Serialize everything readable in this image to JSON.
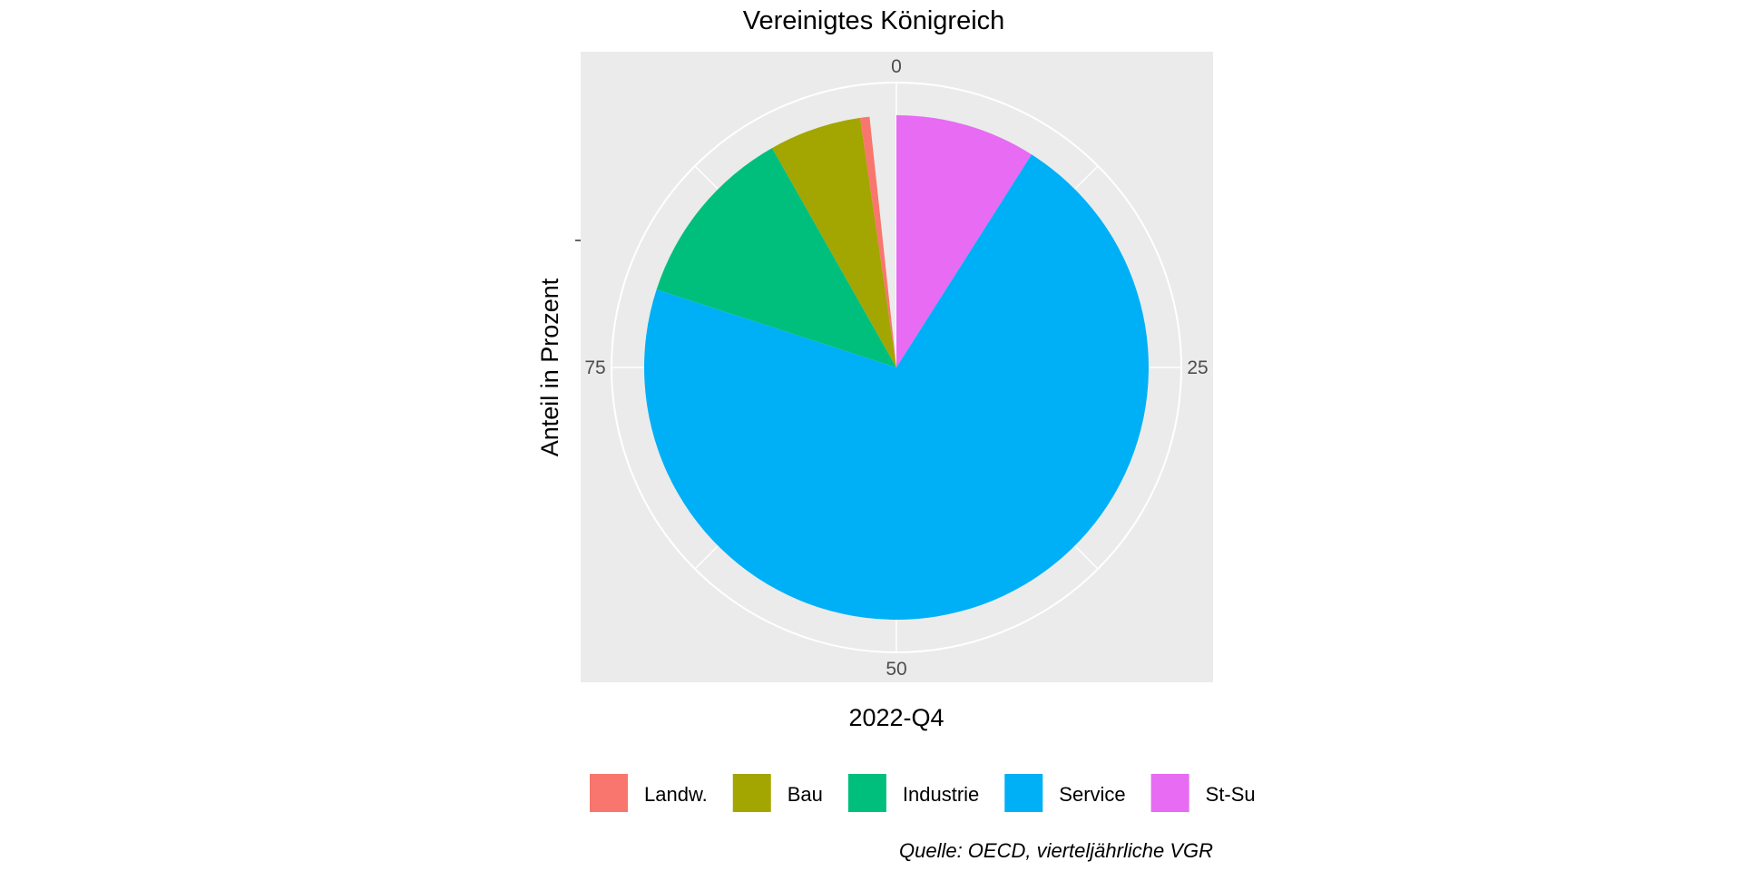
{
  "chart_data": {
    "type": "pie",
    "title": "Vereinigtes Königreich",
    "xlabel": "2022-Q4",
    "ylabel": "Anteil in Prozent",
    "caption": "Quelle: OECD, vierteljährliche VGR",
    "theta_ticks": [
      "0",
      "25",
      "50",
      "75"
    ],
    "theta_range": [
      0,
      100
    ],
    "grid": true,
    "legend_position": "bottom",
    "slices": [
      {
        "label": "St-Su",
        "value": 9.0,
        "color": "#E76BF3"
      },
      {
        "label": "Service",
        "value": 71.0,
        "color": "#00B0F6"
      },
      {
        "label": "Industrie",
        "value": 11.8,
        "color": "#00BF7D"
      },
      {
        "label": "Bau",
        "value": 5.9,
        "color": "#A3A500"
      },
      {
        "label": "Landw.",
        "value": 0.6,
        "color": "#F8766D"
      }
    ],
    "legend": [
      {
        "label": "Landw.",
        "color": "#F8766D"
      },
      {
        "label": "Bau",
        "color": "#A3A500"
      },
      {
        "label": "Industrie",
        "color": "#00BF7D"
      },
      {
        "label": "Service",
        "color": "#00B0F6"
      },
      {
        "label": "St-Su",
        "color": "#E76BF3"
      }
    ]
  }
}
